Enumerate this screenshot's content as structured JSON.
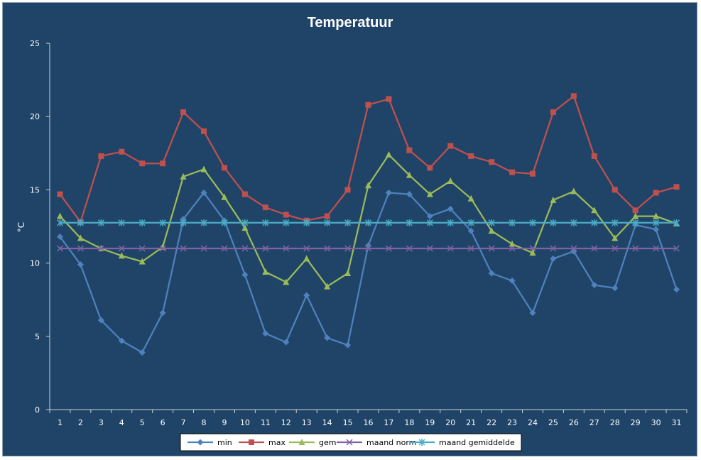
{
  "chart_data": {
    "type": "line",
    "title": "Temperatuur",
    "xlabel": "",
    "ylabel": "°C",
    "ylim": [
      0,
      25
    ],
    "yticks": [
      0,
      5,
      10,
      15,
      20,
      25
    ],
    "grid": false,
    "legend_position": "bottom",
    "categories": [
      "1",
      "2",
      "3",
      "4",
      "5",
      "6",
      "7",
      "8",
      "9",
      "10",
      "11",
      "12",
      "13",
      "14",
      "15",
      "16",
      "17",
      "18",
      "19",
      "20",
      "21",
      "22",
      "23",
      "24",
      "25",
      "26",
      "27",
      "28",
      "29",
      "30",
      "31"
    ],
    "series": [
      {
        "name": "min",
        "marker": "diamond",
        "color": "#4f81bd",
        "values": [
          11.8,
          9.9,
          6.1,
          4.7,
          3.9,
          6.6,
          13.0,
          14.8,
          12.9,
          9.2,
          5.2,
          4.6,
          7.8,
          4.9,
          4.4,
          11.2,
          14.8,
          14.7,
          13.2,
          13.7,
          12.2,
          9.3,
          8.8,
          6.6,
          10.3,
          10.8,
          8.5,
          8.3,
          12.6,
          12.3,
          8.2
        ]
      },
      {
        "name": "max",
        "marker": "square",
        "color": "#c0504d",
        "values": [
          14.7,
          12.8,
          17.3,
          17.6,
          16.8,
          16.8,
          20.3,
          19.0,
          16.5,
          14.7,
          13.8,
          13.3,
          12.9,
          13.2,
          15.0,
          20.8,
          21.2,
          17.7,
          16.5,
          18.0,
          17.3,
          16.9,
          16.2,
          16.1,
          20.3,
          21.4,
          17.3,
          15.0,
          13.6,
          14.8,
          15.2
        ]
      },
      {
        "name": "gem",
        "marker": "triangle",
        "color": "#9bbb59",
        "values": [
          13.2,
          11.7,
          11.0,
          10.5,
          10.1,
          11.1,
          15.9,
          16.4,
          14.5,
          12.4,
          9.4,
          8.7,
          10.3,
          8.4,
          9.3,
          15.3,
          17.4,
          16.0,
          14.7,
          15.6,
          14.4,
          12.2,
          11.3,
          10.7,
          14.3,
          14.9,
          13.6,
          11.7,
          13.2,
          13.2,
          12.7
        ]
      },
      {
        "name": "maand norm",
        "marker": "x",
        "color": "#8064a2",
        "values": [
          11.0,
          11.0,
          11.0,
          11.0,
          11.0,
          11.0,
          11.0,
          11.0,
          11.0,
          11.0,
          11.0,
          11.0,
          11.0,
          11.0,
          11.0,
          11.0,
          11.0,
          11.0,
          11.0,
          11.0,
          11.0,
          11.0,
          11.0,
          11.0,
          11.0,
          11.0,
          11.0,
          11.0,
          11.0,
          11.0,
          11.0
        ]
      },
      {
        "name": "maand gemiddelde",
        "marker": "star",
        "color": "#4bacc6",
        "values": [
          12.75,
          12.75,
          12.75,
          12.75,
          12.75,
          12.75,
          12.75,
          12.75,
          12.75,
          12.75,
          12.75,
          12.75,
          12.75,
          12.75,
          12.75,
          12.75,
          12.75,
          12.75,
          12.75,
          12.75,
          12.75,
          12.75,
          12.75,
          12.75,
          12.75,
          12.75,
          12.75,
          12.75,
          12.75,
          12.75,
          12.75
        ]
      }
    ]
  }
}
